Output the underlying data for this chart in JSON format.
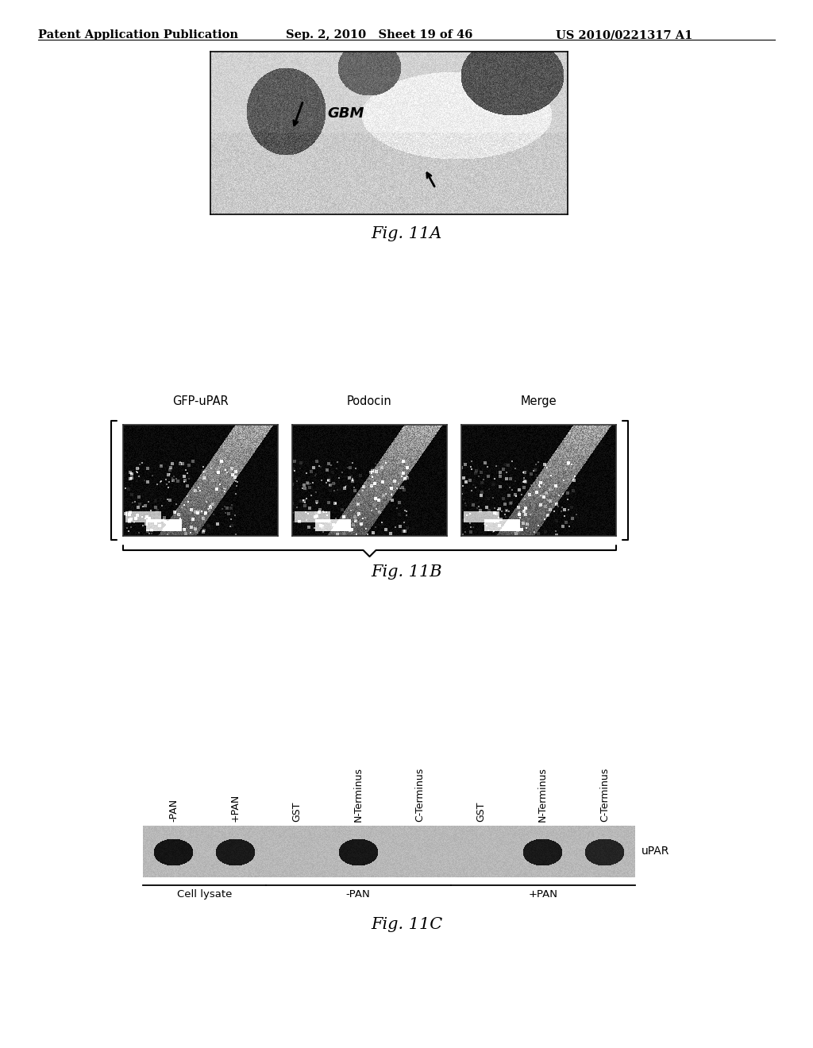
{
  "page_header_left": "Patent Application Publication",
  "page_header_mid": "Sep. 2, 2010   Sheet 19 of 46",
  "page_header_right": "US 2010/0221317 A1",
  "fig11a_label": "Fig. 11A",
  "fig11a_gbm": "GBM",
  "fig11b_label": "Fig. 11B",
  "fig11b_labels": [
    "GFP-uPAR",
    "Podocin",
    "Merge"
  ],
  "fig11c_label": "Fig. 11C",
  "fig11c_col_labels": [
    "-PAN",
    "+PAN",
    "GST",
    "N-Terminus",
    "C-Terminus",
    "GST",
    "N-Terminus",
    "C-Terminus"
  ],
  "fig11c_row_label": "uPAR",
  "fig11c_group_labels": [
    "Cell lysate",
    "-PAN",
    "+PAN"
  ],
  "background_color": "#ffffff",
  "text_color": "#000000",
  "header_fontsize": 10.5,
  "fig_label_fontsize": 15
}
